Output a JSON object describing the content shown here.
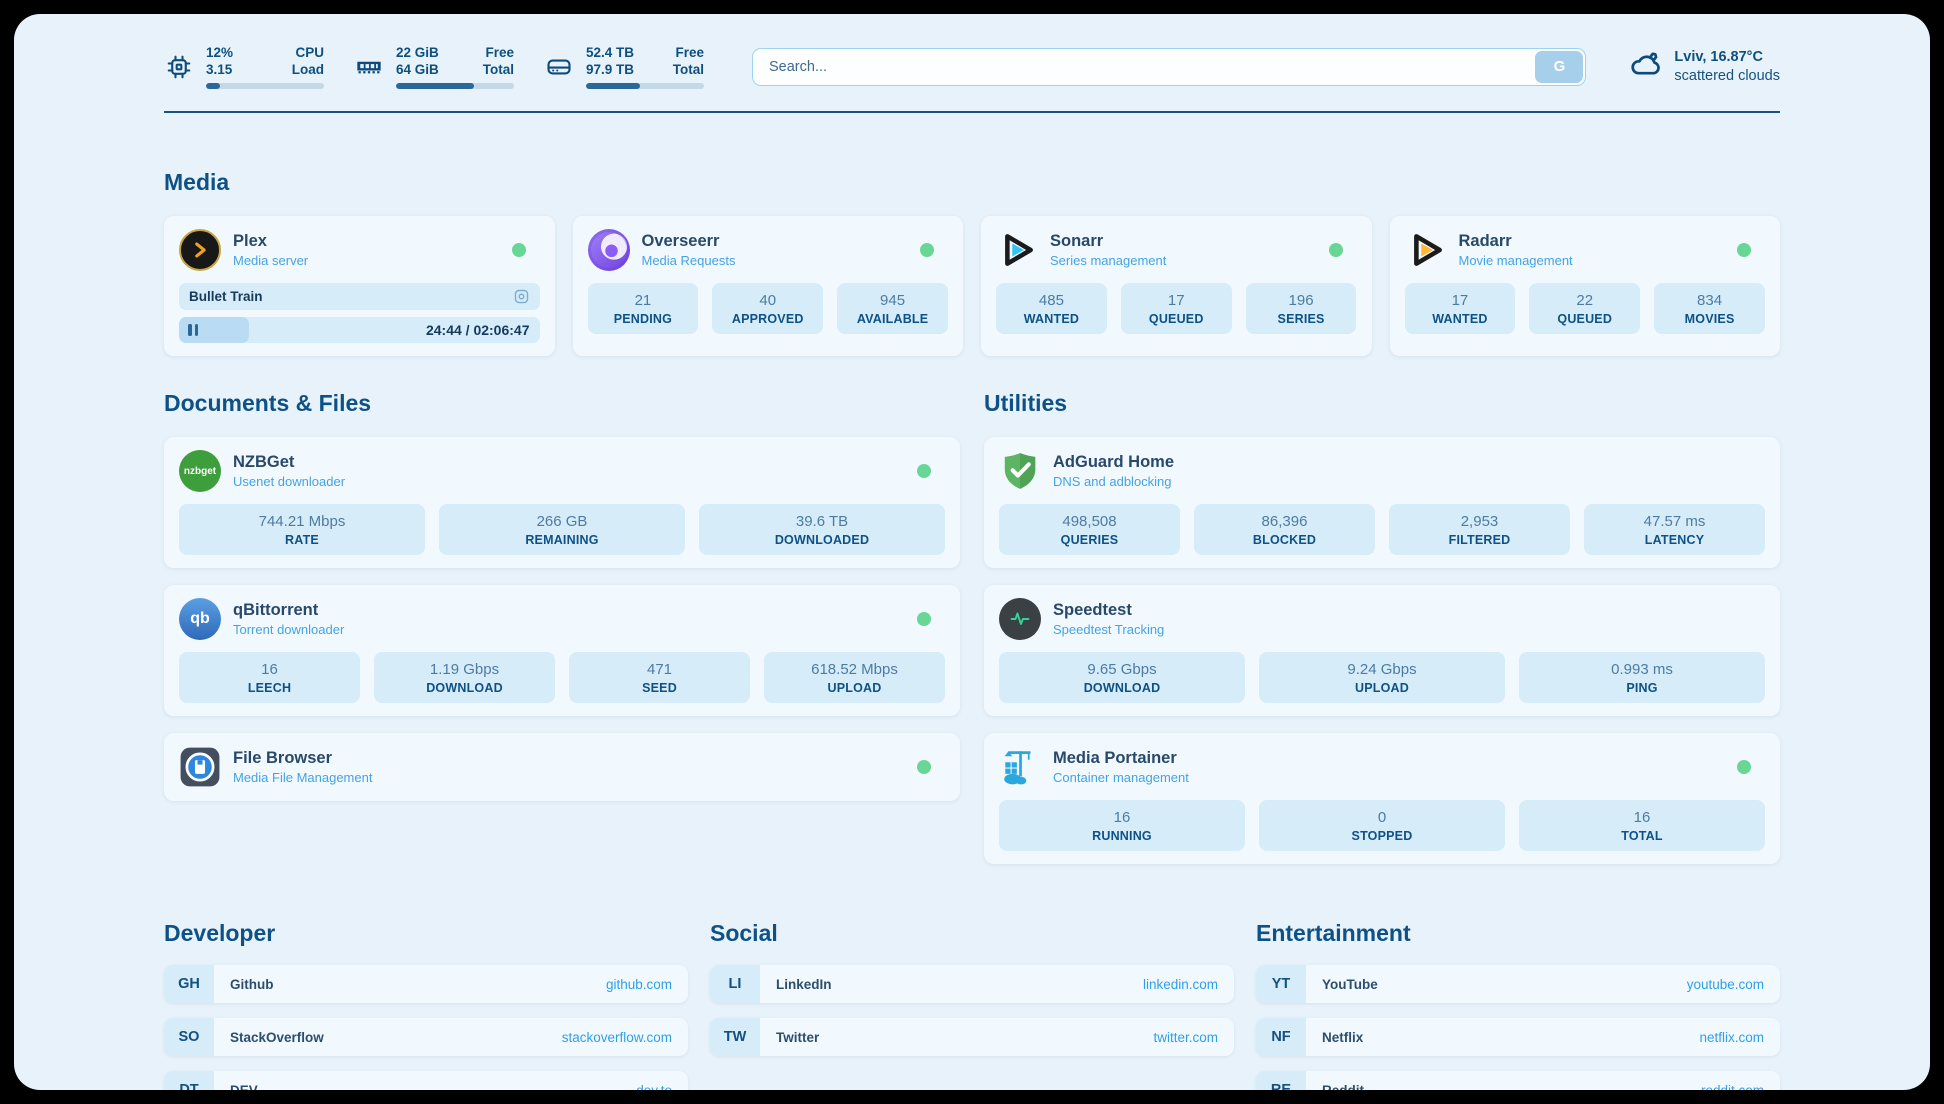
{
  "colors": {
    "panel_background": "#e8f2fa",
    "card_background": "#f2f9fe",
    "stat_box_background": "#d6ecf9",
    "heading_text": "#0d5187",
    "subtitle_text": "#44a3e3",
    "link_text": "#2f9fe8",
    "status_green": "#68d795",
    "progress_fill": "#2b689a"
  },
  "header": {
    "stats": [
      {
        "icon": "cpu-icon",
        "col1_top": "12%",
        "col1_bottom": "3.15",
        "col2_top": "CPU",
        "col2_bottom": "Load",
        "progress": 12
      },
      {
        "icon": "ram-icon",
        "col1_top": "22 GiB",
        "col1_bottom": "64 GiB",
        "col2_top": "Free",
        "col2_bottom": "Total",
        "progress": 66
      },
      {
        "icon": "disk-icon",
        "col1_top": "52.4 TB",
        "col1_bottom": "97.9 TB",
        "col2_top": "Free",
        "col2_bottom": "Total",
        "progress": 46
      }
    ],
    "search": {
      "placeholder": "Search...",
      "button_label": "G"
    },
    "weather": {
      "location_temp": "Lviv, 16.87°C",
      "condition": "scattered clouds"
    }
  },
  "sections": {
    "media": {
      "title": "Media",
      "apps": [
        {
          "name": "Plex",
          "description": "Media server",
          "status_dot": true,
          "now_playing": {
            "title": "Bullet Train",
            "time": "24:44 / 02:06:47",
            "progress_pct": 19.5
          }
        },
        {
          "name": "Overseerr",
          "description": "Media Requests",
          "status_dot": true,
          "stats": [
            {
              "value": "21",
              "label": "PENDING"
            },
            {
              "value": "40",
              "label": "APPROVED"
            },
            {
              "value": "945",
              "label": "AVAILABLE"
            }
          ]
        },
        {
          "name": "Sonarr",
          "description": "Series management",
          "status_dot": true,
          "stats": [
            {
              "value": "485",
              "label": "WANTED"
            },
            {
              "value": "17",
              "label": "QUEUED"
            },
            {
              "value": "196",
              "label": "SERIES"
            }
          ]
        },
        {
          "name": "Radarr",
          "description": "Movie management",
          "status_dot": true,
          "stats": [
            {
              "value": "17",
              "label": "WANTED"
            },
            {
              "value": "22",
              "label": "QUEUED"
            },
            {
              "value": "834",
              "label": "MOVIES"
            }
          ]
        }
      ]
    },
    "docs_files": {
      "title": "Documents & Files",
      "apps": [
        {
          "name": "NZBGet",
          "description": "Usenet downloader",
          "status_dot": true,
          "stats": [
            {
              "value": "744.21 Mbps",
              "label": "RATE"
            },
            {
              "value": "266 GB",
              "label": "REMAINING"
            },
            {
              "value": "39.6 TB",
              "label": "DOWNLOADED"
            }
          ]
        },
        {
          "name": "qBittorrent",
          "description": "Torrent downloader",
          "status_dot": true,
          "stats": [
            {
              "value": "16",
              "label": "LEECH"
            },
            {
              "value": "1.19 Gbps",
              "label": "DOWNLOAD"
            },
            {
              "value": "471",
              "label": "SEED"
            },
            {
              "value": "618.52 Mbps",
              "label": "UPLOAD"
            }
          ]
        },
        {
          "name": "File Browser",
          "description": "Media File Management",
          "status_dot": true
        }
      ]
    },
    "utilities": {
      "title": "Utilities",
      "apps": [
        {
          "name": "AdGuard Home",
          "description": "DNS and adblocking",
          "status_dot": false,
          "stats": [
            {
              "value": "498,508",
              "label": "QUERIES"
            },
            {
              "value": "86,396",
              "label": "BLOCKED"
            },
            {
              "value": "2,953",
              "label": "FILTERED"
            },
            {
              "value": "47.57 ms",
              "label": "LATENCY"
            }
          ]
        },
        {
          "name": "Speedtest",
          "description": "Speedtest Tracking",
          "status_dot": false,
          "stats": [
            {
              "value": "9.65 Gbps",
              "label": "DOWNLOAD"
            },
            {
              "value": "9.24 Gbps",
              "label": "UPLOAD"
            },
            {
              "value": "0.993 ms",
              "label": "PING"
            }
          ]
        },
        {
          "name": "Media Portainer",
          "description": "Container management",
          "status_dot": true,
          "stats": [
            {
              "value": "16",
              "label": "RUNNING"
            },
            {
              "value": "0",
              "label": "STOPPED"
            },
            {
              "value": "16",
              "label": "TOTAL"
            }
          ]
        }
      ]
    }
  },
  "bookmarks": [
    {
      "title": "Developer",
      "links": [
        {
          "abbr": "GH",
          "name": "Github",
          "url": "github.com"
        },
        {
          "abbr": "SO",
          "name": "StackOverflow",
          "url": "stackoverflow.com"
        },
        {
          "abbr": "DT",
          "name": "DEV",
          "url": "dev.to"
        }
      ]
    },
    {
      "title": "Social",
      "links": [
        {
          "abbr": "LI",
          "name": "LinkedIn",
          "url": "linkedin.com"
        },
        {
          "abbr": "TW",
          "name": "Twitter",
          "url": "twitter.com"
        }
      ]
    },
    {
      "title": "Entertainment",
      "links": [
        {
          "abbr": "YT",
          "name": "YouTube",
          "url": "youtube.com"
        },
        {
          "abbr": "NF",
          "name": "Netflix",
          "url": "netflix.com"
        },
        {
          "abbr": "RE",
          "name": "Reddit",
          "url": "reddit.com"
        }
      ]
    }
  ]
}
